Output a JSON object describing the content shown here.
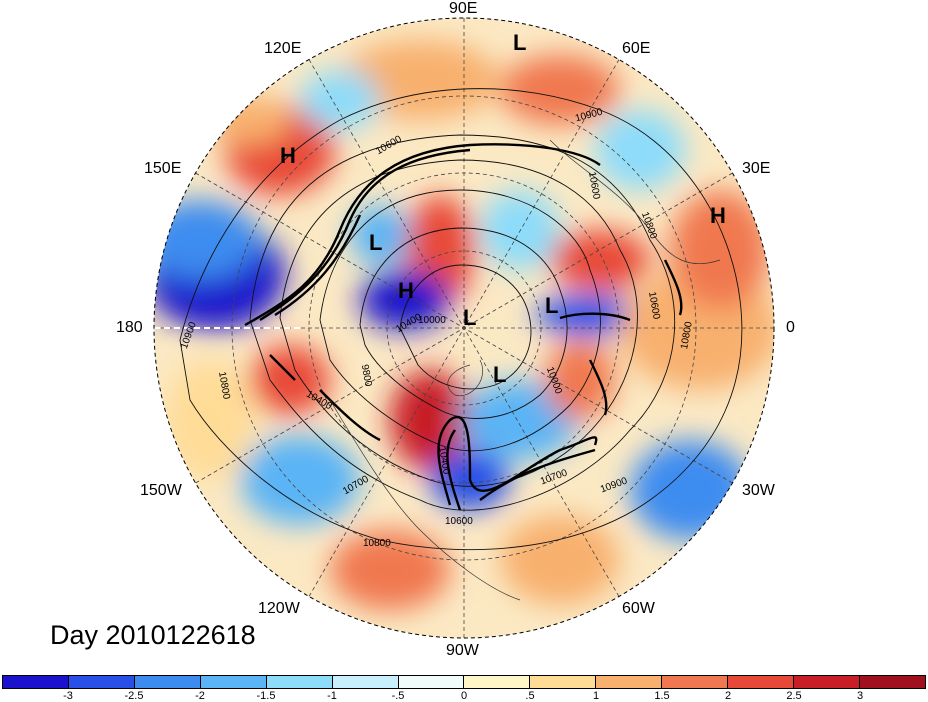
{
  "title": "Day 2010122618",
  "longitude_labels": [
    "90E",
    "60E",
    "30E",
    "0",
    "30W",
    "60W",
    "90W",
    "120W",
    "150W",
    "180",
    "150E",
    "120E"
  ],
  "pressure_centers": [
    "L",
    "H",
    "L",
    "H",
    "L",
    "H",
    "L",
    "L"
  ],
  "contour_labels": [
    "10900",
    "10600",
    "10800",
    "10600",
    "10800",
    "10900",
    "10700",
    "10800",
    "10600",
    "10400",
    "10000",
    "9800",
    "10400",
    "10000",
    "10800",
    "10900",
    "10700",
    "10600",
    "10400"
  ],
  "colorbar": {
    "colors": [
      "#1a12cc",
      "#2850e8",
      "#3c8cf0",
      "#5ab4f5",
      "#8cdcfa",
      "#c8f0fc",
      "#f0fcfa",
      "#fff6c8",
      "#ffdc96",
      "#f8b06e",
      "#f07850",
      "#e84838",
      "#c81e28",
      "#a0101e"
    ],
    "tick_labels": [
      "-3",
      "-2.5",
      "-2",
      "-1.5",
      "-1",
      "-.5",
      "0",
      ".5",
      "1",
      "1.5",
      "2",
      "2.5",
      "3"
    ]
  }
}
